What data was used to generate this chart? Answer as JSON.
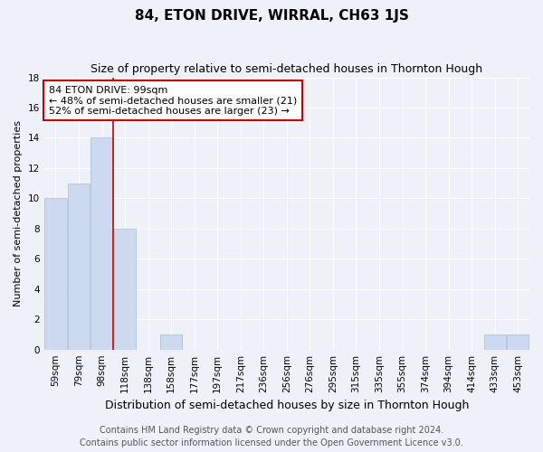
{
  "title": "84, ETON DRIVE, WIRRAL, CH63 1JS",
  "subtitle": "Size of property relative to semi-detached houses in Thornton Hough",
  "xlabel": "Distribution of semi-detached houses by size in Thornton Hough",
  "ylabel": "Number of semi-detached properties",
  "categories": [
    "59sqm",
    "79sqm",
    "98sqm",
    "118sqm",
    "138sqm",
    "158sqm",
    "177sqm",
    "197sqm",
    "217sqm",
    "236sqm",
    "256sqm",
    "276sqm",
    "295sqm",
    "315sqm",
    "335sqm",
    "355sqm",
    "374sqm",
    "394sqm",
    "414sqm",
    "433sqm",
    "453sqm"
  ],
  "values": [
    10,
    11,
    14,
    8,
    0,
    1,
    0,
    0,
    0,
    0,
    0,
    0,
    0,
    0,
    0,
    0,
    0,
    0,
    0,
    1,
    1
  ],
  "bar_color": "#ccd9ee",
  "bar_edge_color": "#a8bdd8",
  "highlight_line_color": "#cc0000",
  "annotation_text": "84 ETON DRIVE: 99sqm\n← 48% of semi-detached houses are smaller (21)\n52% of semi-detached houses are larger (23) →",
  "annotation_box_color": "#ffffff",
  "annotation_border_color": "#cc0000",
  "footer1": "Contains HM Land Registry data © Crown copyright and database right 2024.",
  "footer2": "Contains public sector information licensed under the Open Government Licence v3.0.",
  "ylim": [
    0,
    18
  ],
  "yticks": [
    0,
    2,
    4,
    6,
    8,
    10,
    12,
    14,
    16,
    18
  ],
  "background_color": "#eef2f8",
  "grid_color": "#ffffff",
  "title_fontsize": 11,
  "subtitle_fontsize": 9,
  "xlabel_fontsize": 9,
  "ylabel_fontsize": 8,
  "tick_fontsize": 7.5,
  "footer_fontsize": 7,
  "annotation_fontsize": 8
}
